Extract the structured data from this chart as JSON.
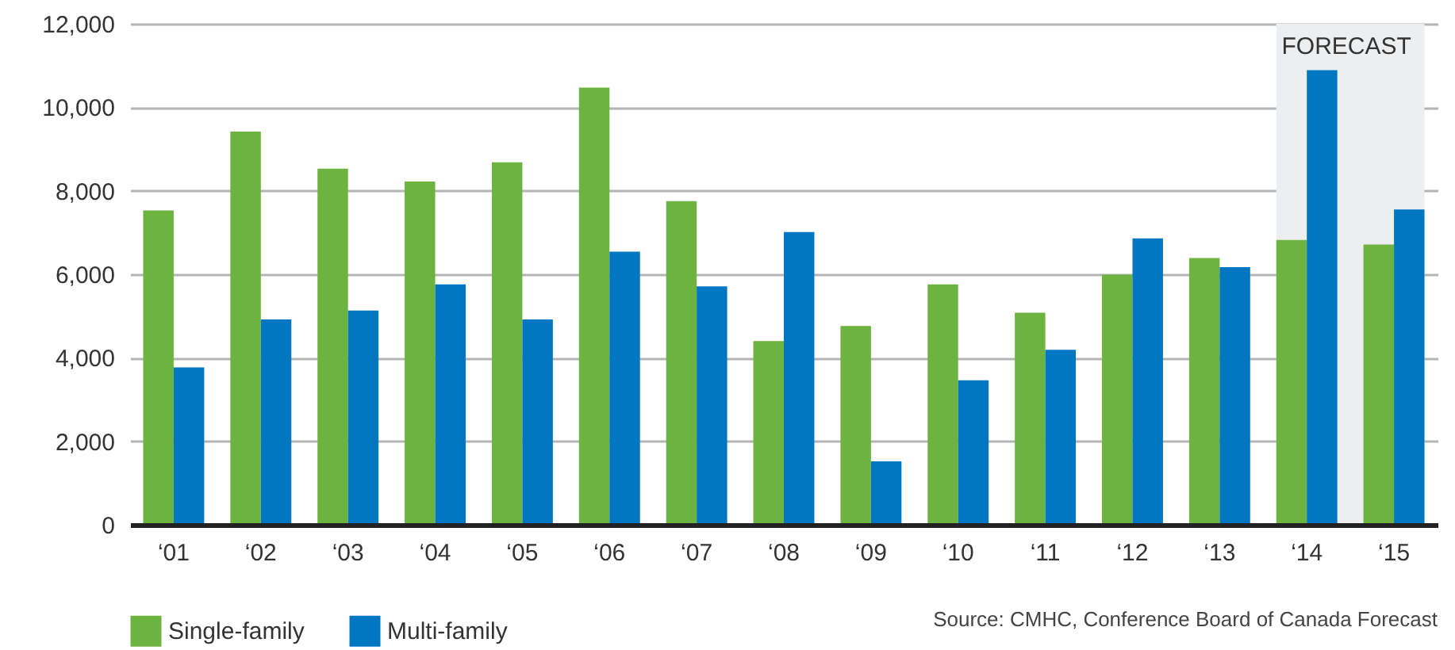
{
  "chart_data": {
    "type": "bar",
    "categories": [
      "‘01",
      "‘02",
      "‘03",
      "‘04",
      "‘05",
      "‘06",
      "‘07",
      "‘08",
      "‘09",
      "‘10",
      "‘11",
      "‘12",
      "‘13",
      "‘14",
      "‘15"
    ],
    "series": [
      {
        "name": "Single-family",
        "color": "#6db33f",
        "values": [
          7530,
          9420,
          8530,
          8220,
          8680,
          10470,
          7750,
          4400,
          4760,
          5760,
          5080,
          5990,
          6390,
          6820,
          6710
        ]
      },
      {
        "name": "Multi-family",
        "color": "#0077c0",
        "values": [
          3770,
          4920,
          5130,
          5760,
          4920,
          6540,
          5710,
          7010,
          1520,
          3460,
          4190,
          6860,
          6170,
          10890,
          7550
        ]
      }
    ],
    "ylim": [
      0,
      12000
    ],
    "yticks": [
      0,
      {
        "value": 2000,
        "label": "2,000"
      },
      {
        "value": 4000,
        "label": "4,000"
      },
      {
        "value": 6000,
        "label": "6,000"
      },
      {
        "value": 8000,
        "label": "8,000"
      },
      {
        "value": 10000,
        "label": "10,000"
      },
      {
        "value": 12000,
        "label": "12,000"
      }
    ],
    "grid": "y",
    "legend": "bottom left",
    "bands": [
      {
        "axis": "x",
        "from": "‘14",
        "to": "‘15",
        "label": "FORECAST",
        "color": "#eceef0"
      }
    ],
    "annotations": [
      "Source: CMHC, Conference Board of Canada Forecast"
    ]
  }
}
